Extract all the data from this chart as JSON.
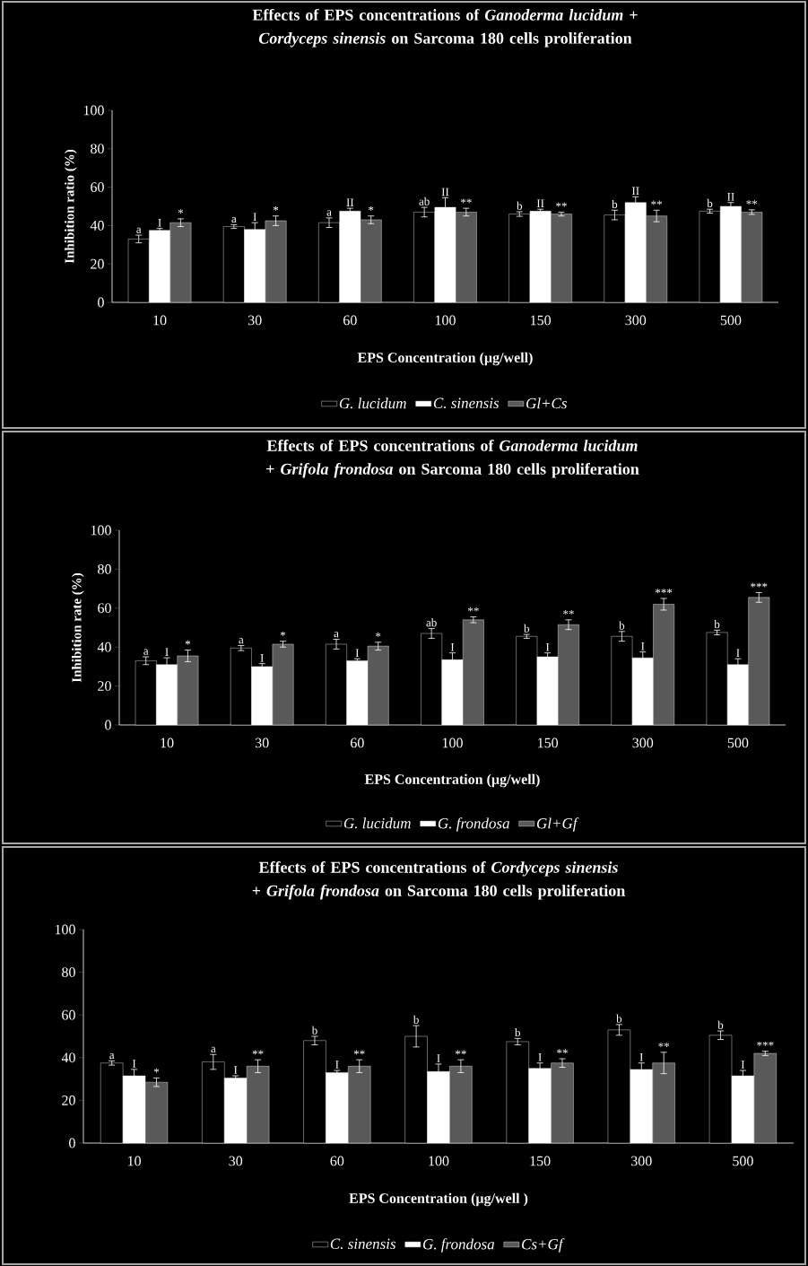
{
  "chart_data": [
    {
      "type": "bar",
      "title": "Effects of EPS concentrations of *Ganoderma lucidum* + *Cordyceps sinensis* on  Sarcoma 180 cells proliferation",
      "xlabel": "EPS Concentration (µg/well)",
      "ylabel": "Inhibition ratio (%)",
      "categories": [
        "10",
        "30",
        "60",
        "100",
        "150",
        "300",
        "500"
      ],
      "series": [
        {
          "name": "G. lucidum",
          "color": "#000000",
          "values": [
            33,
            39.5,
            41.5,
            47,
            46,
            45.5,
            47.5
          ],
          "errors": [
            2,
            1,
            2.5,
            2.5,
            1.2,
            2.5,
            1
          ],
          "value_labels": [
            "a",
            "a",
            "a",
            "ab",
            "b",
            "b",
            "b"
          ]
        },
        {
          "name": "C. sinensis",
          "color": "#ffffff",
          "values": [
            37.5,
            38,
            47.5,
            49.5,
            47.5,
            52,
            50
          ],
          "errors": [
            1,
            3.5,
            1.5,
            5,
            1,
            3,
            2
          ],
          "value_labels": [
            "I",
            "I",
            "II",
            "II",
            "II",
            "II",
            "II"
          ]
        },
        {
          "name": "Gl+Cs",
          "color": "#595959",
          "values": [
            41.5,
            42.5,
            43,
            47,
            46,
            45,
            47
          ],
          "errors": [
            2,
            2.5,
            2,
            2,
            1,
            3,
            1.2
          ],
          "value_labels": [
            "*",
            "*",
            "*",
            "**",
            "**",
            "**",
            "**"
          ]
        }
      ],
      "ylim": [
        0,
        100
      ],
      "yticks": [
        0,
        20,
        40,
        60,
        80,
        100
      ],
      "legend": "bottom"
    },
    {
      "type": "bar",
      "title": "Effects of EPS concentrations of *Ganoderma lucidum* + *Grifola frondosa* on  Sarcoma 180 cells proliferation",
      "xlabel": "EPS Concentration (µg/well)",
      "ylabel": "Inhibition rate (%)",
      "categories": [
        "10",
        "30",
        "60",
        "100",
        "150",
        "300",
        "500"
      ],
      "series": [
        {
          "name": "G. lucidum",
          "color": "#000000",
          "values": [
            33,
            39.5,
            41.5,
            47,
            45.5,
            45.5,
            47.5
          ],
          "errors": [
            2,
            1.3,
            2.5,
            2.5,
            1,
            2.5,
            1.2
          ],
          "value_labels": [
            "a",
            "a",
            "a",
            "ab",
            "b",
            "b",
            "b"
          ]
        },
        {
          "name": "G. frondosa",
          "color": "#ffffff",
          "values": [
            31,
            30,
            33,
            33.5,
            35,
            34.5,
            31
          ],
          "errors": [
            3.5,
            1.5,
            1,
            3.5,
            2,
            3,
            3
          ],
          "value_labels": [
            "I",
            "I",
            "I",
            "I",
            "I",
            "I",
            "I"
          ]
        },
        {
          "name": "Gl+Gf",
          "color": "#595959",
          "values": [
            35.5,
            41.5,
            40.5,
            54,
            51.5,
            62,
            65.5
          ],
          "errors": [
            3,
            1.5,
            2,
            1.5,
            2.5,
            3,
            2.5
          ],
          "value_labels": [
            "*",
            "*",
            "*",
            "**",
            "**",
            "***",
            "***"
          ]
        }
      ],
      "ylim": [
        0,
        100
      ],
      "yticks": [
        0,
        20,
        40,
        60,
        80,
        100
      ],
      "legend": "bottom"
    },
    {
      "type": "bar",
      "title": "Effects of EPS concentrations of *Cordyceps sinensis* + *Grifola frondosa* on  Sarcoma 180 cells proliferation",
      "xlabel": "EPS Concentration (µg/well )",
      "categories": [
        "10",
        "30",
        "60",
        "100",
        "150",
        "300",
        "500"
      ],
      "series": [
        {
          "name": "C. sinensis",
          "color": "#000000",
          "values": [
            37.5,
            38,
            48,
            50,
            47.5,
            53,
            50.5
          ],
          "errors": [
            1,
            3.5,
            2,
            5,
            1.5,
            2.5,
            2
          ],
          "value_labels": [
            "a",
            "a",
            "b",
            "b",
            "b",
            "b",
            "b"
          ]
        },
        {
          "name": "G. frondosa",
          "color": "#ffffff",
          "values": [
            31.5,
            30.5,
            33,
            33.5,
            35,
            34.5,
            31.5
          ],
          "errors": [
            3,
            1,
            1,
            3.5,
            2.5,
            3,
            2.5
          ],
          "value_labels": [
            "I",
            "I",
            "I",
            "I",
            "I",
            "I",
            "I"
          ]
        },
        {
          "name": "Cs+Gf",
          "color": "#595959",
          "values": [
            28.5,
            36,
            36,
            36,
            37.5,
            37.5,
            42
          ],
          "errors": [
            2,
            3,
            3,
            3,
            2,
            5,
            1
          ],
          "value_labels": [
            "*",
            "**",
            "**",
            "**",
            "**",
            "**",
            "***"
          ]
        }
      ],
      "ylim": [
        0,
        100
      ],
      "yticks": [
        0,
        20,
        40,
        60,
        80,
        100
      ],
      "legend": "bottom"
    }
  ]
}
